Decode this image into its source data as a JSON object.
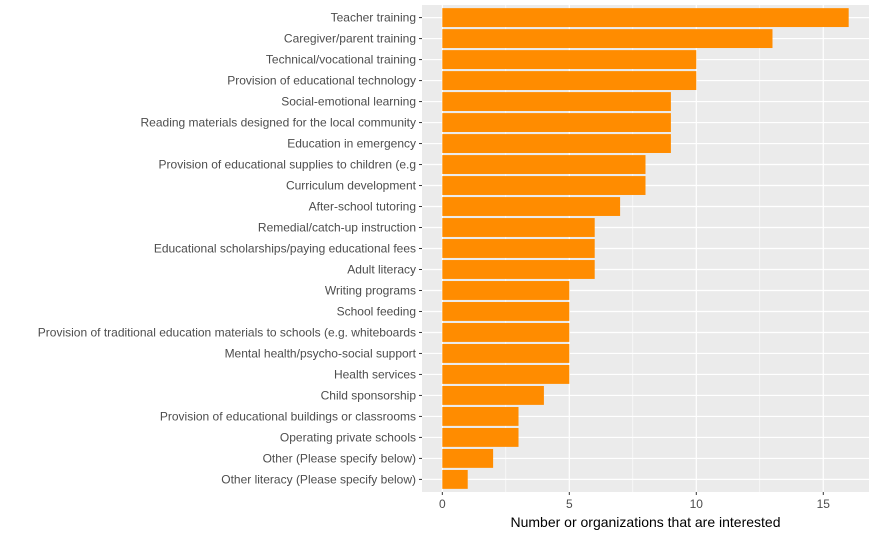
{
  "chart_data": {
    "type": "bar",
    "orientation": "horizontal",
    "categories": [
      "Teacher training",
      "Caregiver/parent training",
      "Technical/vocational training",
      "Provision of educational technology",
      "Social-emotional learning",
      "Reading materials designed for the local community",
      "Education in emergency",
      "Provision of educational supplies to children (e.g",
      "Curriculum development",
      "After-school tutoring",
      "Remedial/catch-up instruction",
      "Educational scholarships/paying educational fees",
      "Adult literacy",
      "Writing programs",
      "School feeding",
      "Provision of traditional education materials to schools (e.g. whiteboards",
      "Mental health/psycho-social support",
      "Health services",
      "Child sponsorship",
      "Provision of educational buildings or classrooms",
      "Operating private schools",
      "Other (Please specify below)",
      "Other literacy (Please specify below)"
    ],
    "values": [
      16,
      13,
      10,
      10,
      9,
      9,
      9,
      8,
      8,
      7,
      6,
      6,
      6,
      5,
      5,
      5,
      5,
      5,
      4,
      3,
      3,
      2,
      1
    ],
    "xlabel": "Number or organizations that are interested",
    "ylabel": "",
    "xlim": [
      -0.8,
      16.8
    ],
    "x_ticks": [
      0,
      5,
      10,
      15
    ],
    "grid": true,
    "bar_color": "#ff8c00",
    "panel_color": "#ebebeb",
    "grid_color": "#ffffff"
  }
}
